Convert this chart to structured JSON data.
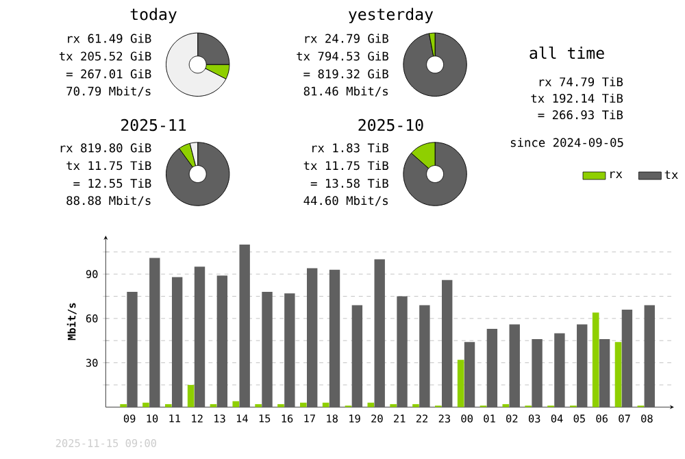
{
  "chart_data": [
    {
      "type": "donut",
      "title": "today",
      "categories": [
        null,
        null,
        null
      ],
      "values": [
        25,
        7.5,
        67.5
      ],
      "colors": [
        "#606060",
        "#8fcf00",
        "#f0f0f0"
      ],
      "annotations": [
        "rx 61.49 GiB",
        "tx 205.52 GiB",
        "= 267.01 GiB",
        "70.79 Mbit/s"
      ]
    },
    {
      "type": "donut",
      "title": "yesterday",
      "categories": [
        null,
        null
      ],
      "values": [
        97,
        3
      ],
      "colors": [
        "#606060",
        "#8fcf00"
      ],
      "annotations": [
        "rx 24.79 GiB",
        "tx 794.53 GiB",
        "= 819.32 GiB",
        "81.46 Mbit/s"
      ]
    },
    {
      "type": "donut",
      "title": "2025-11",
      "categories": [
        null,
        null,
        null
      ],
      "values": [
        90,
        6,
        4
      ],
      "colors": [
        "#606060",
        "#8fcf00",
        "#f0f0f0"
      ],
      "annotations": [
        "rx 819.80 GiB",
        "tx 11.75 TiB",
        "= 12.55 TiB",
        "88.88 Mbit/s"
      ]
    },
    {
      "type": "donut",
      "title": "2025-10",
      "categories": [
        null,
        null
      ],
      "values": [
        86.5,
        13.5
      ],
      "colors": [
        "#606060",
        "#8fcf00"
      ],
      "annotations": [
        "rx 1.83 TiB",
        "tx 11.75 TiB",
        "= 13.58 TiB",
        "44.60 Mbit/s"
      ]
    },
    {
      "type": "other",
      "title": "all time",
      "annotations": [
        "rx 74.79 TiB",
        "tx 192.14 TiB",
        "= 266.93 TiB",
        "since 2024-09-05"
      ]
    },
    {
      "type": "bar",
      "ylabel": "Mbit/s",
      "categories": [
        "09",
        "10",
        "11",
        "12",
        "13",
        "14",
        "15",
        "16",
        "17",
        "18",
        "19",
        "20",
        "21",
        "22",
        "23",
        "00",
        "01",
        "02",
        "03",
        "04",
        "05",
        "06",
        "07",
        "08"
      ],
      "series": [
        {
          "name": "rx",
          "color": "#8fcf00",
          "values": [
            2,
            3,
            2,
            15,
            2,
            4,
            2,
            2,
            3,
            3,
            1,
            3,
            2,
            2,
            1,
            32,
            1,
            2,
            1,
            1,
            1,
            64,
            44,
            1
          ]
        },
        {
          "name": "tx",
          "color": "#606060",
          "values": [
            78,
            101,
            88,
            95,
            89,
            110,
            78,
            77,
            94,
            93,
            69,
            100,
            75,
            69,
            86,
            44,
            53,
            56,
            46,
            50,
            56,
            46,
            66,
            69
          ]
        }
      ],
      "ylim": [
        0,
        116
      ],
      "yticks": [
        {
          "value": 15,
          "label": null
        },
        30,
        {
          "value": 45,
          "label": null
        },
        60,
        {
          "value": 75,
          "label": null
        },
        90,
        {
          "value": 105,
          "label": null
        }
      ],
      "grid": "y",
      "legend": "top right",
      "annotations": [
        "2025-11-15 09:00"
      ]
    }
  ]
}
